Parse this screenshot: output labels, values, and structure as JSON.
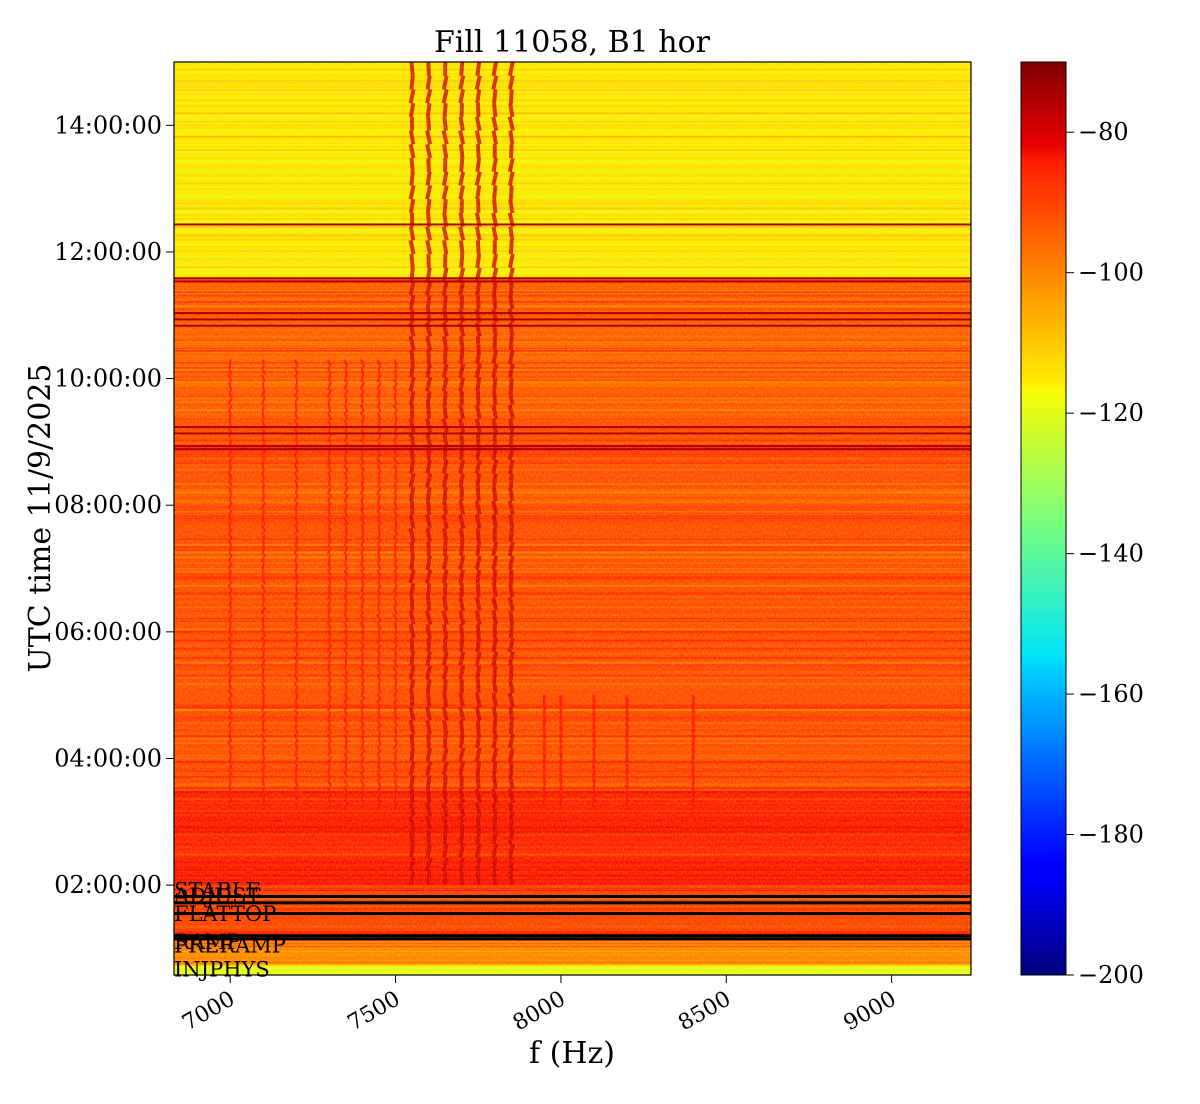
{
  "chart_data": {
    "type": "heatmap",
    "title": "Fill 11058, B1 hor",
    "xlabel": "f (Hz)",
    "ylabel": "UTC time 11/9/2025",
    "x_ticks": [
      7000,
      7500,
      8000,
      8500,
      9000
    ],
    "x_tick_labels": [
      "7000",
      "7500",
      "8000",
      "8500",
      "9000"
    ],
    "xlim": [
      6830,
      9240
    ],
    "y_ticks": [
      "02:00:00",
      "04:00:00",
      "06:00:00",
      "08:00:00",
      "10:00:00",
      "12:00:00",
      "14:00:00"
    ],
    "ylim_hours": [
      0.58,
      15.0
    ],
    "colormap": "jet",
    "colorbar": {
      "range": [
        -200,
        -70
      ],
      "ticks": [
        -80,
        -100,
        -120,
        -140,
        -160,
        -180,
        -200
      ],
      "tick_labels": [
        "−80",
        "−100",
        "−120",
        "−140",
        "−160",
        "−180",
        "−200"
      ]
    },
    "beam_mode_labels": [
      "STABLE",
      "ADJUST",
      "FLATTOP",
      "RAMP",
      "PRERAMP",
      "INJPHYS"
    ],
    "mode_transition_hours": [
      1.82,
      1.72,
      1.55,
      1.2,
      1.15
    ],
    "background_levels": [
      {
        "from_hour": 0.58,
        "to_hour": 0.75,
        "level_db": -120
      },
      {
        "from_hour": 0.75,
        "to_hour": 1.2,
        "level_db": -103
      },
      {
        "from_hour": 1.2,
        "to_hour": 2.0,
        "level_db": -95
      },
      {
        "from_hour": 2.0,
        "to_hour": 3.5,
        "level_db": -90
      },
      {
        "from_hour": 3.5,
        "to_hour": 9.5,
        "level_db": -96
      },
      {
        "from_hour": 9.5,
        "to_hour": 11.6,
        "level_db": -98
      },
      {
        "from_hour": 11.6,
        "to_hour": 15.0,
        "level_db": -116
      }
    ],
    "spectral_lines_hz": [
      7000,
      7100,
      7200,
      7300,
      7350,
      7400,
      7450,
      7500,
      7550,
      7600,
      7650,
      7700,
      7750,
      7800,
      7850,
      7950,
      8000,
      8100,
      8200,
      8400
    ]
  }
}
